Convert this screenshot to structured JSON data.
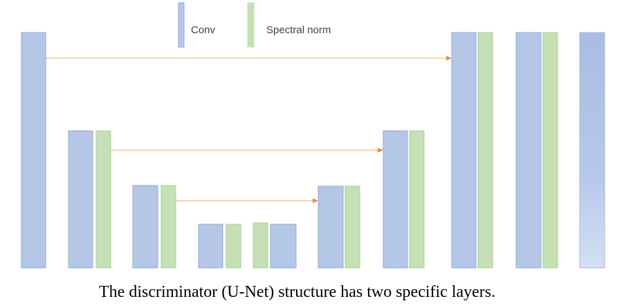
{
  "legend": {
    "conv_label": "Conv",
    "spectral_label": "Spectral norm"
  },
  "caption": "The discriminator (U-Net) structure has two specific layers.",
  "colors": {
    "conv": "#b4c7e7",
    "conv_stroke": "#8faadc",
    "spectral": "#c5e0b4",
    "spectral_stroke": "#a9d18e",
    "arrow": "#f4a460"
  }
}
